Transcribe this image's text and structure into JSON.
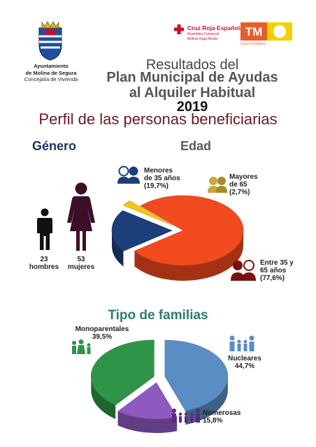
{
  "header": {
    "ayto_line1": "Ayuntamiento",
    "ayto_line2": "de Molina de Segura",
    "ayto_line3": "Concejalía de Vivienda",
    "cruzroja_name": "Cruz Roja Española",
    "cruzroja_sub1": "Asamblea Comarcal",
    "cruzroja_sub2": "Molina-Vega Media",
    "tm_text": "TM",
    "tm_sub": "Grupo inmobiliario",
    "colors": {
      "red": "#c8102e",
      "tm_orange": "#e85d2a",
      "tm_yellow": "#f5d000"
    }
  },
  "title": {
    "line1": "Resultados del",
    "line2": "Plan Municipal de Ayudas",
    "line3": "al Alquiler Habitual",
    "line4": "2019"
  },
  "subtitle": "Perfil de las personas beneficiarias",
  "gender": {
    "heading": "Género",
    "men_count": "23",
    "men_label": "hombres",
    "women_count": "53",
    "women_label": "mujeres",
    "colors": {
      "men": "#111111",
      "women": "#3b0f2a"
    }
  },
  "age_heading": "Edad",
  "family_heading": "Tipo de familias",
  "chart_data": [
    {
      "type": "pie",
      "categories": [
        "Menores de 35 años",
        "Mayores de 65",
        "Entre 35 y 65 años"
      ],
      "values": [
        19.7,
        2.7,
        77.6
      ],
      "labels": [
        "Menores\nde 35 años\n(19,7%)",
        "Mayores\nde 65\n(2,7%)",
        "Entre 35 y\n65 años\n(77,6%)"
      ],
      "colors": [
        "#1b3f78",
        "#f2c418",
        "#f04a1e"
      ],
      "icons": [
        "young-couple-icon",
        "elderly-couple-icon",
        "middle-aged-couple-icon"
      ]
    },
    {
      "type": "pie",
      "categories": [
        "Nucleares",
        "Numerosas",
        "Monoparentales"
      ],
      "values": [
        44.7,
        15.8,
        39.5
      ],
      "labels": [
        "Nucleares\n44,7%",
        "Numerosas\n15,8%",
        "Monoparentales\n39,5%"
      ],
      "colors": [
        "#5b8dc5",
        "#8e59c0",
        "#2f9447"
      ],
      "icons": [
        "nuclear-family-icon",
        "large-family-icon",
        "single-parent-family-icon"
      ]
    }
  ]
}
